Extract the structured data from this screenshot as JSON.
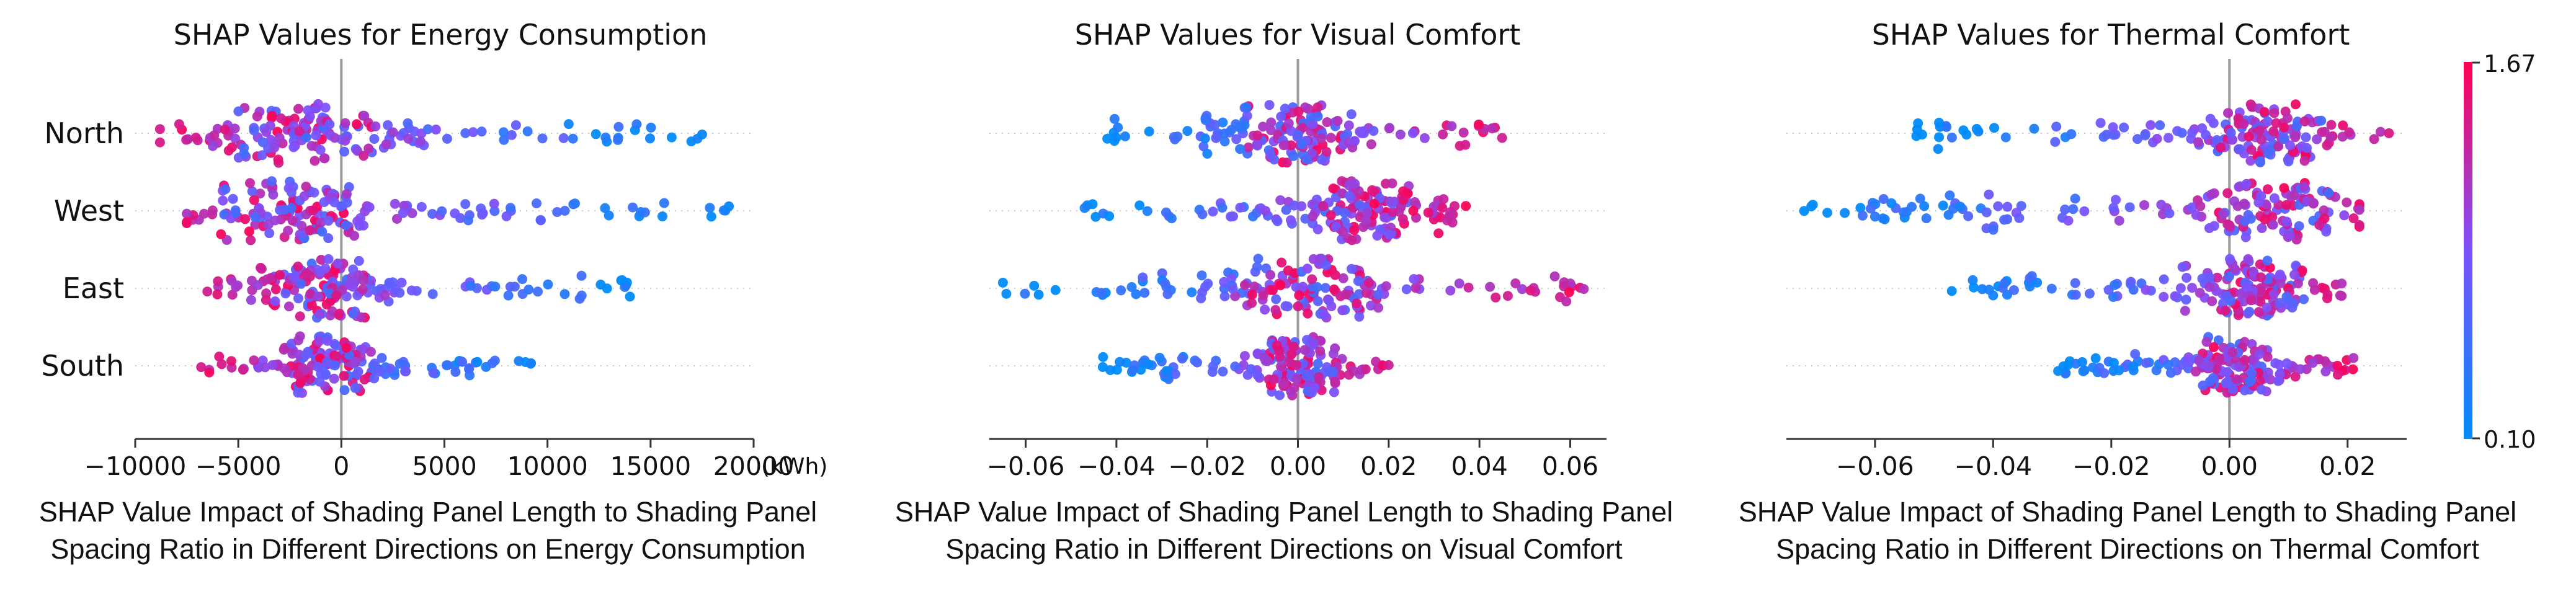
{
  "chart_data": [
    {
      "type": "scatter",
      "subtype": "shap-beeswarm",
      "title": "SHAP Values for Energy Consumption",
      "features": [
        "North",
        "West",
        "East",
        "South"
      ],
      "xlim": [
        -10000,
        20000
      ],
      "xticks": [
        -10000,
        -5000,
        0,
        5000,
        10000,
        15000,
        20000
      ],
      "xtick_labels": [
        "−10000",
        "−5000",
        "0",
        "5000",
        "10000",
        "15000",
        "20000"
      ],
      "x_unit": "(kWh)",
      "xlabel_lines": [
        "SHAP Value Impact of Shading Panel Length to Shading Panel",
        "Spacing Ratio in Different Directions on Energy Consumption"
      ],
      "distributions": [
        {
          "feature": "North",
          "min": -8800,
          "max": 17500,
          "center": -1800,
          "neg_high": true
        },
        {
          "feature": "West",
          "min": -7500,
          "max": 18800,
          "center": -2500,
          "neg_high": true
        },
        {
          "feature": "East",
          "min": -6500,
          "max": 14000,
          "center": -1000,
          "neg_high": true
        },
        {
          "feature": "South",
          "min": -6800,
          "max": 9200,
          "center": -500,
          "neg_high": true
        }
      ]
    },
    {
      "type": "scatter",
      "subtype": "shap-beeswarm",
      "title": "SHAP Values for Visual Comfort",
      "features": [
        "North",
        "West",
        "East",
        "South"
      ],
      "xlim": [
        -0.068,
        0.068
      ],
      "xticks": [
        -0.06,
        -0.04,
        -0.02,
        0.0,
        0.02,
        0.04,
        0.06
      ],
      "xtick_labels": [
        "−0.06",
        "−0.04",
        "−0.02",
        "0.00",
        "0.02",
        "0.04",
        "0.06"
      ],
      "xlabel_lines": [
        "SHAP Value Impact of Shading Panel Length to Shading Panel",
        "Spacing Ratio in Different Directions on Visual Comfort"
      ],
      "distributions": [
        {
          "feature": "North",
          "min": -0.042,
          "max": 0.045,
          "center": 0.0,
          "neg_high": false
        },
        {
          "feature": "West",
          "min": -0.047,
          "max": 0.037,
          "center": 0.015,
          "neg_high": false
        },
        {
          "feature": "East",
          "min": -0.065,
          "max": 0.063,
          "center": 0.002,
          "neg_high": false
        },
        {
          "feature": "South",
          "min": -0.043,
          "max": 0.02,
          "center": 0.0,
          "neg_high": false
        }
      ]
    },
    {
      "type": "scatter",
      "subtype": "shap-beeswarm",
      "title": "SHAP Values for Thermal Comfort",
      "features": [
        "North",
        "West",
        "East",
        "South"
      ],
      "xlim": [
        -0.075,
        0.03
      ],
      "xticks": [
        -0.06,
        -0.04,
        -0.02,
        0.0,
        0.02
      ],
      "xtick_labels": [
        "−0.06",
        "−0.04",
        "−0.02",
        "0.00",
        "0.02"
      ],
      "xlabel_lines": [
        "SHAP Value Impact of Shading Panel Length to Shading Panel",
        "Spacing Ratio in Different Directions on Thermal Comfort"
      ],
      "distributions": [
        {
          "feature": "North",
          "min": -0.053,
          "max": 0.027,
          "center": 0.006,
          "neg_high": false
        },
        {
          "feature": "West",
          "min": -0.072,
          "max": 0.022,
          "center": 0.008,
          "neg_high": false
        },
        {
          "feature": "East",
          "min": -0.047,
          "max": 0.019,
          "center": 0.005,
          "neg_high": false
        },
        {
          "feature": "South",
          "min": -0.029,
          "max": 0.021,
          "center": 0.0,
          "neg_high": false
        }
      ]
    }
  ],
  "colorbar": {
    "min_label": "0.10",
    "max_label": "1.67",
    "low_color": "#008bfb",
    "high_color": "#ff0052"
  }
}
